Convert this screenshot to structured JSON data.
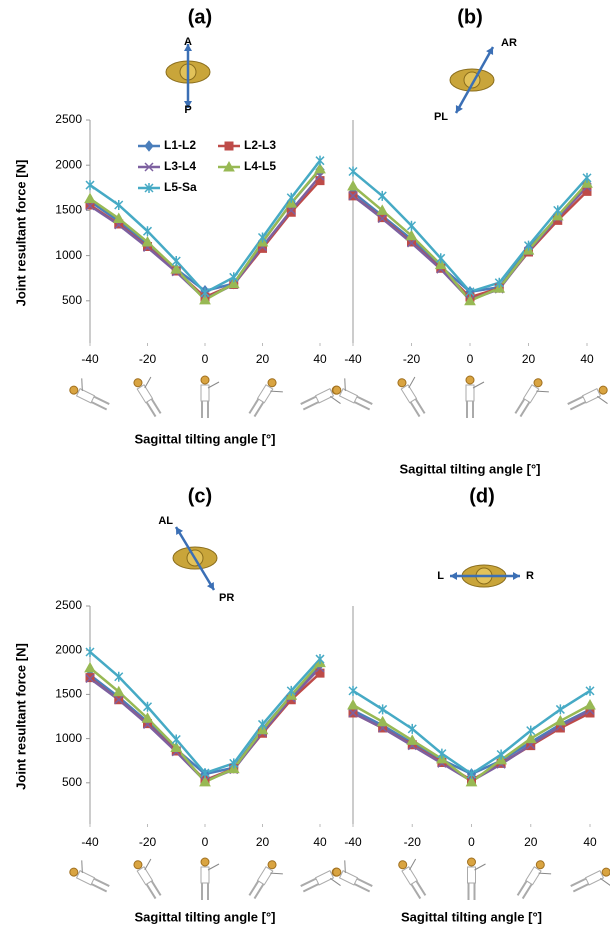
{
  "chart_data": [
    {
      "type": "line",
      "title": "(a)",
      "ylabel": "Joint resultant  force [N]",
      "xlabel": "Sagittal tilting angle [°]",
      "annotations": [
        "A",
        "P"
      ],
      "legend": "upper left",
      "x": [
        -40,
        -30,
        -20,
        -10,
        0,
        10,
        20,
        30,
        40
      ],
      "xlim": [
        -40,
        40
      ],
      "xticks": [
        -40,
        -20,
        0,
        20,
        40
      ],
      "ylim": [
        0,
        2500
      ],
      "yticks": [
        500,
        1000,
        1500,
        2000,
        2500
      ],
      "series": [
        {
          "name": "L1-L2",
          "color": "#4a7ebb",
          "marker": "diamond",
          "values": [
            1600,
            1380,
            1120,
            850,
            610,
            690,
            1150,
            1580,
            1950
          ]
        },
        {
          "name": "L2-L3",
          "color": "#be4b48",
          "marker": "square",
          "values": [
            1560,
            1350,
            1100,
            830,
            540,
            680,
            1080,
            1480,
            1830
          ]
        },
        {
          "name": "L3-L4",
          "color": "#7d60a0",
          "marker": "x",
          "values": [
            1550,
            1340,
            1090,
            820,
            520,
            680,
            1100,
            1500,
            1880
          ]
        },
        {
          "name": "L4-L5",
          "color": "#98b954",
          "marker": "triangle",
          "values": [
            1630,
            1410,
            1150,
            850,
            510,
            690,
            1150,
            1580,
            1960
          ]
        },
        {
          "name": "L5-Sa",
          "color": "#46aac5",
          "marker": "star",
          "values": [
            1780,
            1560,
            1270,
            940,
            590,
            760,
            1200,
            1640,
            2050
          ]
        }
      ]
    },
    {
      "type": "line",
      "title": "(b)",
      "xlabel": "Sagittal tilting angle [°]",
      "annotations": [
        "AR",
        "PL"
      ],
      "x": [
        -40,
        -30,
        -20,
        -10,
        0,
        10,
        20,
        30,
        40
      ],
      "xlim": [
        -40,
        40
      ],
      "xticks": [
        -40,
        -20,
        0,
        20,
        40
      ],
      "ylim": [
        0,
        2500
      ],
      "series": [
        {
          "name": "L1-L2",
          "color": "#4a7ebb",
          "marker": "diamond",
          "values": [
            1700,
            1440,
            1180,
            880,
            600,
            650,
            1080,
            1430,
            1790
          ]
        },
        {
          "name": "L2-L3",
          "color": "#be4b48",
          "marker": "square",
          "values": [
            1660,
            1420,
            1150,
            860,
            540,
            640,
            1040,
            1390,
            1710
          ]
        },
        {
          "name": "L3-L4",
          "color": "#7d60a0",
          "marker": "x",
          "values": [
            1660,
            1410,
            1140,
            850,
            510,
            630,
            1050,
            1420,
            1760
          ]
        },
        {
          "name": "L4-L5",
          "color": "#98b954",
          "marker": "triangle",
          "values": [
            1770,
            1500,
            1220,
            900,
            500,
            640,
            1060,
            1440,
            1800
          ]
        },
        {
          "name": "L5-Sa",
          "color": "#46aac5",
          "marker": "star",
          "values": [
            1930,
            1660,
            1330,
            970,
            600,
            700,
            1110,
            1500,
            1860
          ]
        }
      ]
    },
    {
      "type": "line",
      "title": "(c)",
      "ylabel": "Joint resultant  force [N]",
      "xlabel": "Sagittal tilting angle [°]",
      "annotations": [
        "AL",
        "PR"
      ],
      "x": [
        -40,
        -30,
        -20,
        -10,
        0,
        10,
        20,
        30,
        40
      ],
      "xlim": [
        -40,
        40
      ],
      "xticks": [
        -40,
        -20,
        0,
        20,
        40
      ],
      "ylim": [
        0,
        2500
      ],
      "yticks": [
        500,
        1000,
        1500,
        2000,
        2500
      ],
      "series": [
        {
          "name": "L1-L2",
          "color": "#4a7ebb",
          "marker": "diamond",
          "values": [
            1720,
            1470,
            1190,
            880,
            600,
            670,
            1110,
            1490,
            1840
          ]
        },
        {
          "name": "L2-L3",
          "color": "#be4b48",
          "marker": "square",
          "values": [
            1690,
            1440,
            1170,
            860,
            530,
            660,
            1060,
            1440,
            1740
          ]
        },
        {
          "name": "L3-L4",
          "color": "#7d60a0",
          "marker": "x",
          "values": [
            1680,
            1440,
            1160,
            850,
            520,
            650,
            1070,
            1460,
            1800
          ]
        },
        {
          "name": "L4-L5",
          "color": "#98b954",
          "marker": "triangle",
          "values": [
            1800,
            1530,
            1230,
            900,
            510,
            660,
            1100,
            1490,
            1860
          ]
        },
        {
          "name": "L5-Sa",
          "color": "#46aac5",
          "marker": "star",
          "values": [
            1980,
            1700,
            1360,
            990,
            610,
            720,
            1160,
            1540,
            1900
          ]
        }
      ]
    },
    {
      "type": "line",
      "title": "(d)",
      "xlabel": "Sagittal tilting angle [°]",
      "annotations": [
        "L",
        "R"
      ],
      "x": [
        -40,
        -30,
        -20,
        -10,
        0,
        10,
        20,
        30,
        40
      ],
      "xlim": [
        -40,
        40
      ],
      "xticks": [
        -40,
        -20,
        0,
        20,
        40
      ],
      "ylim": [
        0,
        2500
      ],
      "series": [
        {
          "name": "L1-L2",
          "color": "#4a7ebb",
          "marker": "diamond",
          "values": [
            1320,
            1150,
            950,
            760,
            600,
            750,
            960,
            1160,
            1330
          ]
        },
        {
          "name": "L2-L3",
          "color": "#be4b48",
          "marker": "square",
          "values": [
            1290,
            1120,
            930,
            730,
            530,
            720,
            920,
            1120,
            1290
          ]
        },
        {
          "name": "L3-L4",
          "color": "#7d60a0",
          "marker": "x",
          "values": [
            1290,
            1120,
            920,
            720,
            520,
            710,
            930,
            1140,
            1320
          ]
        },
        {
          "name": "L4-L5",
          "color": "#98b954",
          "marker": "triangle",
          "values": [
            1380,
            1190,
            980,
            770,
            510,
            760,
            1000,
            1200,
            1380
          ]
        },
        {
          "name": "L5-Sa",
          "color": "#46aac5",
          "marker": "star",
          "values": [
            1540,
            1330,
            1110,
            830,
            600,
            820,
            1090,
            1330,
            1540
          ]
        }
      ]
    }
  ]
}
